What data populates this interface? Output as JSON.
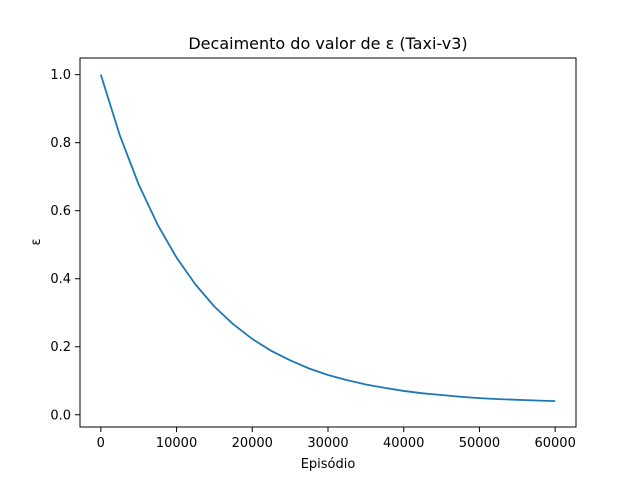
{
  "chart_data": {
    "type": "line",
    "title": "Decaimento do valor de ε (Taxi-v3)",
    "xlabel": "Episódio",
    "ylabel": "ε",
    "xlim": [
      -2750,
      62750
    ],
    "ylim": [
      -0.036,
      1.049
    ],
    "xticks": [
      0,
      10000,
      20000,
      30000,
      40000,
      50000,
      60000
    ],
    "xtick_labels": [
      "0",
      "10000",
      "20000",
      "30000",
      "40000",
      "50000",
      "60000"
    ],
    "yticks": [
      0.0,
      0.2,
      0.4,
      0.6,
      0.8,
      1.0
    ],
    "ytick_labels": [
      "0.0",
      "0.2",
      "0.4",
      "0.6",
      "0.8",
      "1.0"
    ],
    "grid": false,
    "series": [
      {
        "color": "#1f77b4",
        "x": [
          0,
          2500,
          5000,
          7500,
          10000,
          12500,
          15000,
          17500,
          20000,
          22500,
          25000,
          27500,
          30000,
          32500,
          35000,
          37500,
          40000,
          42500,
          45000,
          47500,
          50000,
          52500,
          55000,
          57500,
          60000
        ],
        "y": [
          1.0,
          0.822,
          0.677,
          0.559,
          0.462,
          0.383,
          0.318,
          0.266,
          0.223,
          0.188,
          0.16,
          0.136,
          0.117,
          0.102,
          0.089,
          0.079,
          0.07,
          0.063,
          0.058,
          0.053,
          0.049,
          0.046,
          0.044,
          0.042,
          0.04
        ]
      }
    ]
  }
}
